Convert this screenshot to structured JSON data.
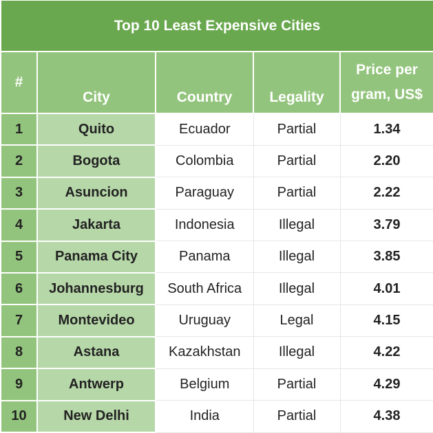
{
  "chart_data": {
    "type": "table",
    "title": "Top 10 Least Expensive Cities",
    "columns": [
      "#",
      "City",
      "Country",
      "Legality",
      "Price per gram, US$"
    ],
    "rows": [
      [
        "1",
        "Quito",
        "Ecuador",
        "Partial",
        "1.34"
      ],
      [
        "2",
        "Bogota",
        "Colombia",
        "Partial",
        "2.20"
      ],
      [
        "3",
        "Asuncion",
        "Paraguay",
        "Partial",
        "2.22"
      ],
      [
        "4",
        "Jakarta",
        "Indonesia",
        "Illegal",
        "3.79"
      ],
      [
        "5",
        "Panama City",
        "Panama",
        "Illegal",
        "3.85"
      ],
      [
        "6",
        "Johannesburg",
        "South Africa",
        "Illegal",
        "4.01"
      ],
      [
        "7",
        "Montevideo",
        "Uruguay",
        "Legal",
        "4.15"
      ],
      [
        "8",
        "Astana",
        "Kazakhstan",
        "Illegal",
        "4.22"
      ],
      [
        "9",
        "Antwerp",
        "Belgium",
        "Partial",
        "4.29"
      ],
      [
        "10",
        "New Delhi",
        "India",
        "Partial",
        "4.38"
      ]
    ],
    "price_header_lines": [
      "Price per",
      "gram, US$"
    ]
  },
  "colors": {
    "title_bg": "#6aa84f",
    "header_bg": "#93c47d",
    "city_bg": "#b6d7a8",
    "body_bg": "#ffffff"
  }
}
